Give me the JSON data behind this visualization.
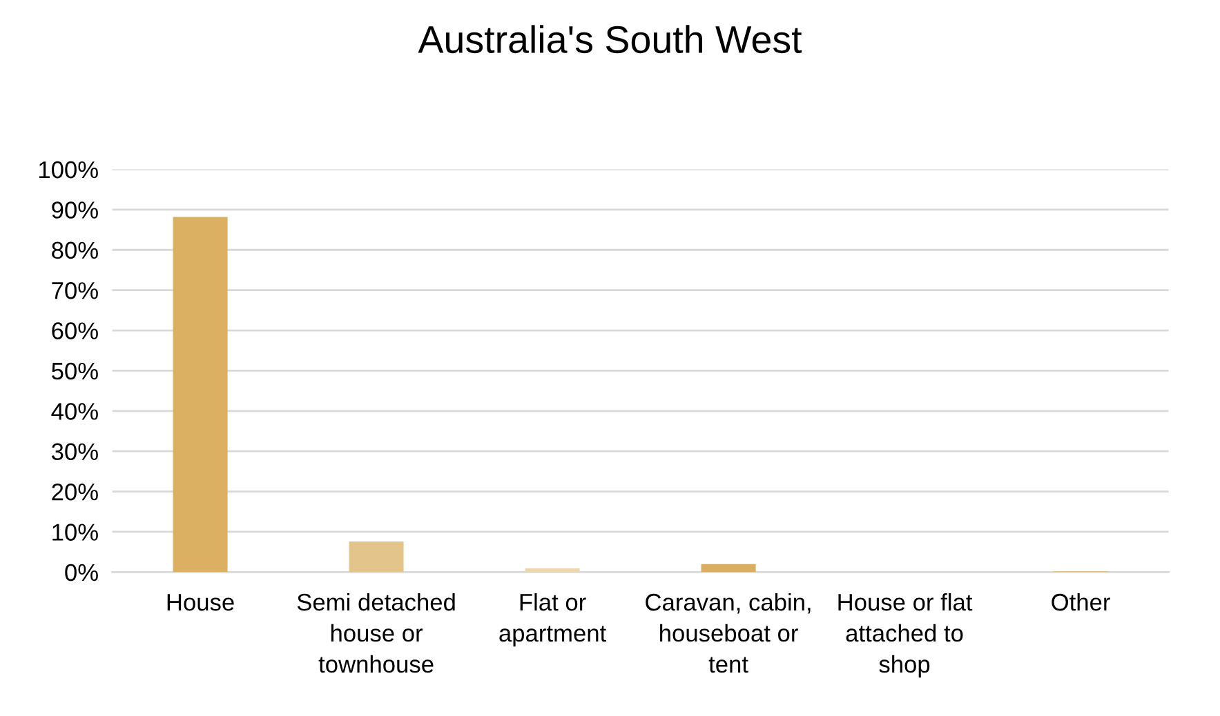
{
  "chart_data": {
    "type": "bar",
    "title": "Australia's South West",
    "categories": [
      "House",
      "Semi detached\nhouse or\ntownhouse",
      "Flat or\napartment",
      "Caravan, cabin,\nhouseboat or\ntent",
      "House or flat\nattached to\nshop",
      "Other"
    ],
    "values": [
      88.2,
      7.6,
      0.9,
      2.0,
      0,
      0.2
    ],
    "colors": [
      "#dbb063",
      "#e3c58b",
      "#ead7ad",
      "#d9ae62",
      "#dbb063",
      "#e6b86a"
    ],
    "ylim": [
      0,
      100
    ],
    "yticks": [
      {
        "value": 0,
        "label": "0%"
      },
      {
        "value": 10,
        "label": "10%"
      },
      {
        "value": 20,
        "label": "20%"
      },
      {
        "value": 30,
        "label": "30%"
      },
      {
        "value": 40,
        "label": "40%"
      },
      {
        "value": 50,
        "label": "50%"
      },
      {
        "value": 60,
        "label": "60%"
      },
      {
        "value": 70,
        "label": "70%"
      },
      {
        "value": 80,
        "label": "80%"
      },
      {
        "value": 90,
        "label": "90%"
      },
      {
        "value": 100,
        "label": "100%"
      }
    ],
    "grid": "y",
    "legend": false
  }
}
